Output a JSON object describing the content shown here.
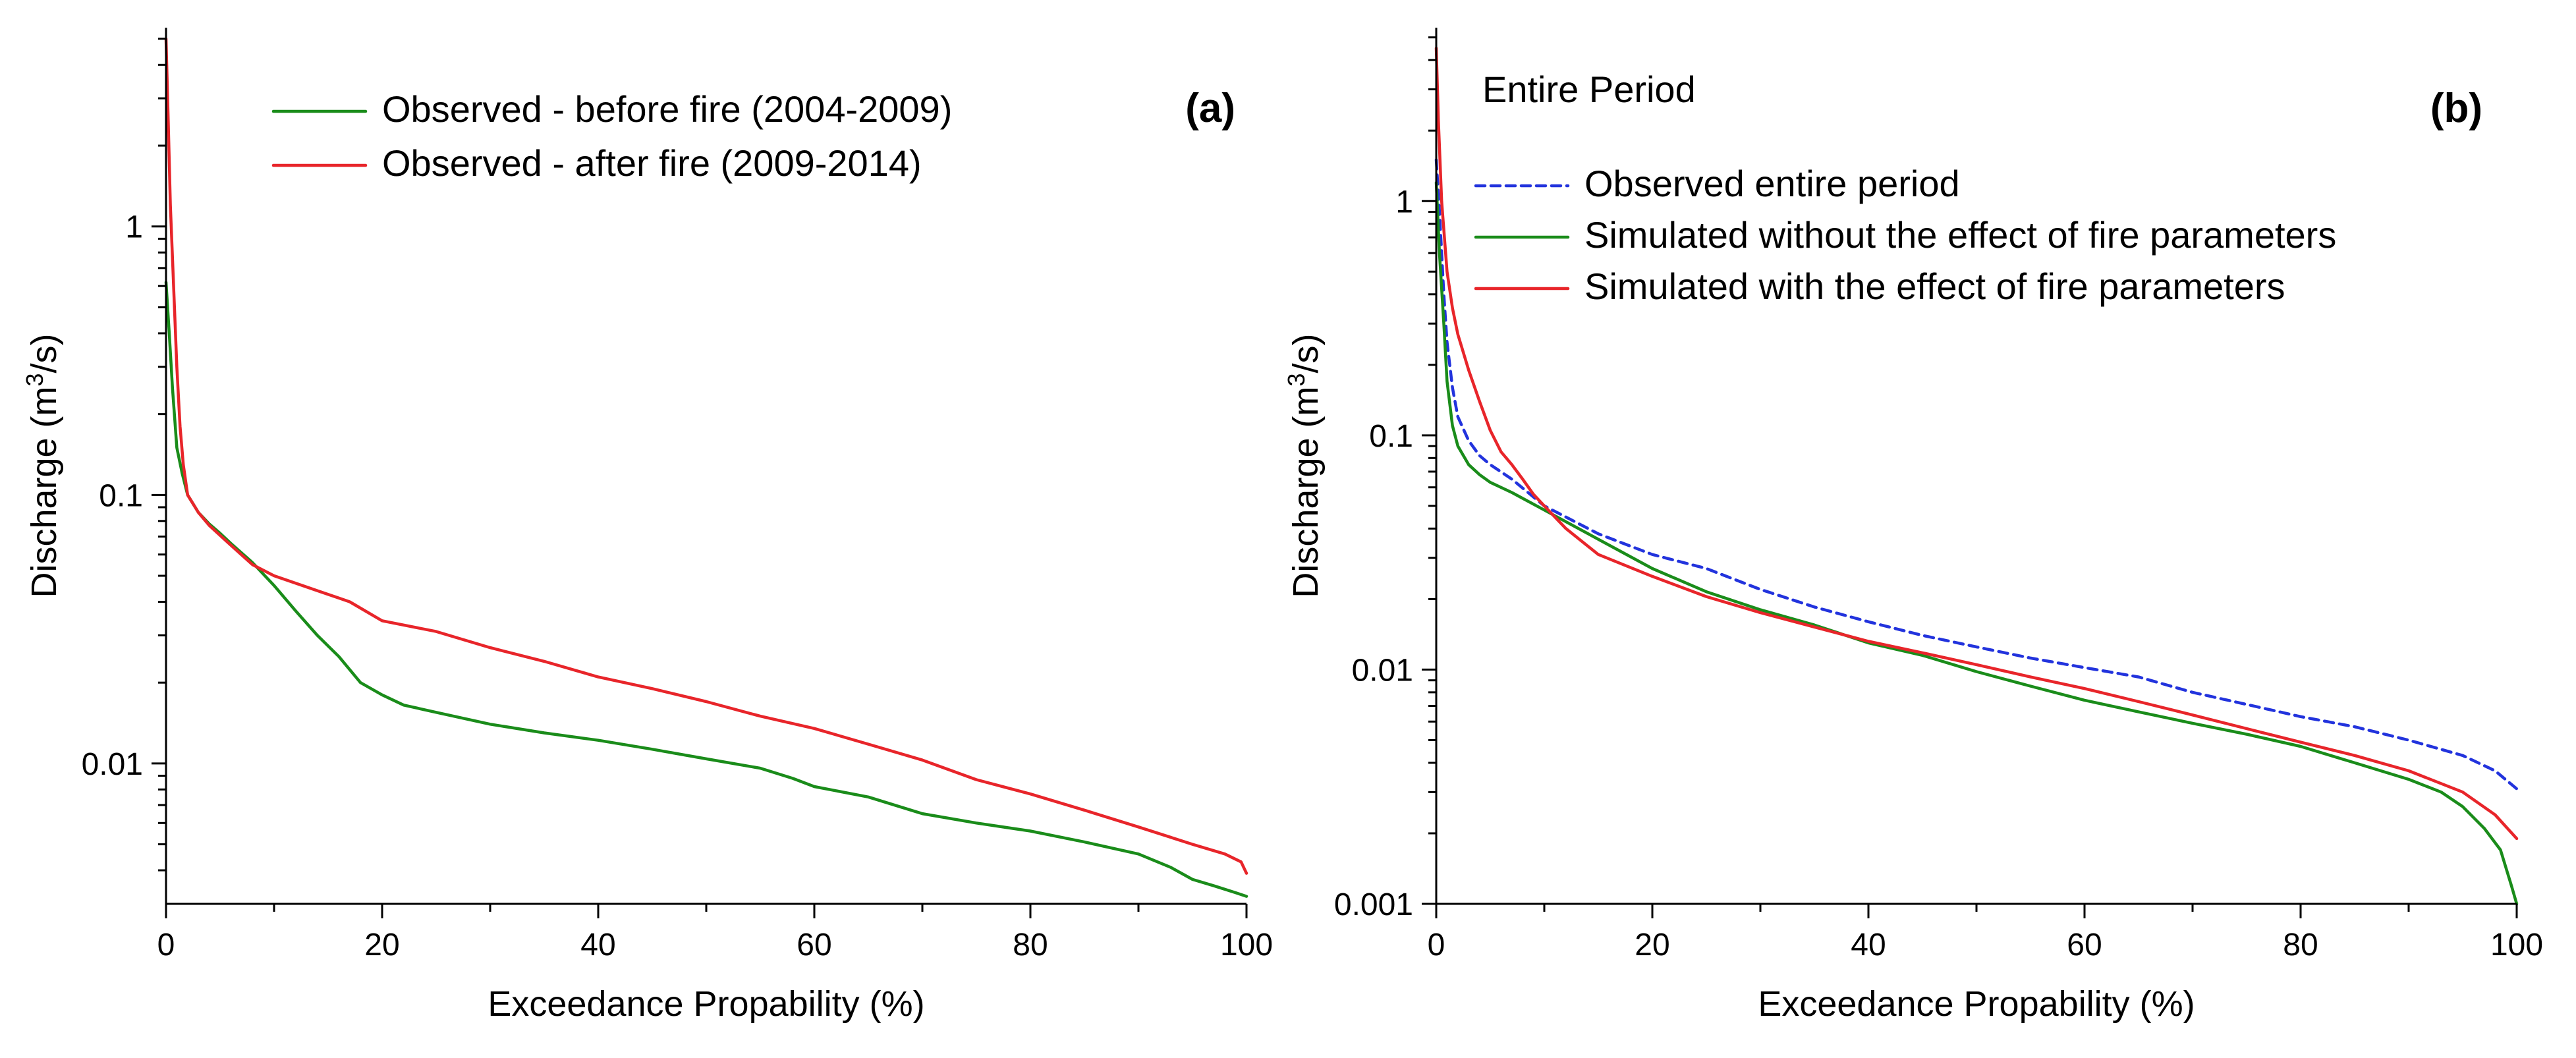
{
  "chart_data": [
    {
      "type": "line",
      "panel_label": "(a)",
      "xlabel": "Exceedance Propability (%)",
      "ylabel": "Discharge (m³/s)",
      "ylabel_parts": {
        "before": "Discharge (m",
        "sup": "3",
        "after": "/s)"
      },
      "xlim": [
        0,
        100
      ],
      "ylim": [
        0.003,
        5.5
      ],
      "yscale": "log",
      "xticks": [
        0,
        20,
        40,
        60,
        80,
        100
      ],
      "xtick_labels": [
        "0",
        "20",
        "40",
        "60",
        "80",
        "100"
      ],
      "yticks": [
        0.01,
        0.1,
        1
      ],
      "ytick_labels": [
        "0.01",
        "0.1",
        "1"
      ],
      "legend_position": "top-center",
      "series": [
        {
          "name": "Observed - before fire (2004-2009)",
          "color": "#1a8c1a",
          "dash": "solid",
          "x": [
            0,
            0.3,
            0.6,
            1,
            1.5,
            2,
            3,
            4,
            5,
            6,
            8,
            10,
            12,
            14,
            16,
            18,
            20,
            22,
            25,
            30,
            35,
            40,
            45,
            50,
            55,
            58,
            60,
            65,
            70,
            75,
            80,
            85,
            90,
            93,
            95,
            97,
            99,
            100
          ],
          "y": [
            0.62,
            0.4,
            0.25,
            0.15,
            0.12,
            0.1,
            0.086,
            0.078,
            0.072,
            0.066,
            0.056,
            0.046,
            0.037,
            0.03,
            0.025,
            0.02,
            0.018,
            0.0165,
            0.0155,
            0.014,
            0.013,
            0.0122,
            0.0113,
            0.0104,
            0.0096,
            0.0088,
            0.0082,
            0.0075,
            0.0065,
            0.006,
            0.0056,
            0.0051,
            0.0046,
            0.0041,
            0.0037,
            0.0035,
            0.0033,
            0.0032
          ]
        },
        {
          "name": "Observed - after fire (2009-2014)",
          "color": "#e8252a",
          "dash": "solid",
          "x": [
            0,
            0.2,
            0.4,
            0.7,
            1,
            1.3,
            1.6,
            2,
            3,
            4,
            6,
            8,
            10,
            14,
            17,
            20,
            25,
            30,
            35,
            40,
            45,
            50,
            55,
            60,
            65,
            70,
            75,
            80,
            85,
            90,
            95,
            98,
            99.5,
            100
          ],
          "y": [
            5.0,
            2.5,
            1.2,
            0.6,
            0.3,
            0.18,
            0.13,
            0.1,
            0.086,
            0.077,
            0.065,
            0.055,
            0.05,
            0.044,
            0.04,
            0.034,
            0.031,
            0.027,
            0.024,
            0.021,
            0.019,
            0.017,
            0.015,
            0.0135,
            0.0118,
            0.0103,
            0.0087,
            0.0077,
            0.0067,
            0.0058,
            0.005,
            0.0046,
            0.0043,
            0.0039
          ]
        }
      ]
    },
    {
      "type": "line",
      "panel_label": "(b)",
      "period_label": "Entire Period",
      "xlabel": "Exceedance Propability (%)",
      "ylabel": "Discharge (m³/s)",
      "ylabel_parts": {
        "before": "Discharge (m",
        "sup": "3",
        "after": "/s)"
      },
      "xlim": [
        0,
        100
      ],
      "ylim": [
        0.001,
        5.5
      ],
      "yscale": "log",
      "xticks": [
        0,
        20,
        40,
        60,
        80,
        100
      ],
      "xtick_labels": [
        "0",
        "20",
        "40",
        "60",
        "80",
        "100"
      ],
      "yticks": [
        0.001,
        0.01,
        0.1,
        1
      ],
      "ytick_labels": [
        "0.001",
        "0.01",
        "0.1",
        "1"
      ],
      "legend_position": "top-center",
      "series": [
        {
          "name": "Observed entire period",
          "color": "#2233dd",
          "dash": "dashed",
          "x": [
            0,
            0.3,
            0.7,
            1,
            1.5,
            2,
            3,
            4,
            5,
            7,
            10,
            15,
            20,
            25,
            30,
            35,
            40,
            45,
            50,
            55,
            60,
            65,
            70,
            75,
            80,
            85,
            90,
            95,
            98,
            100
          ],
          "y": [
            1.5,
            0.9,
            0.4,
            0.25,
            0.16,
            0.12,
            0.095,
            0.082,
            0.075,
            0.065,
            0.05,
            0.038,
            0.031,
            0.027,
            0.022,
            0.0185,
            0.016,
            0.014,
            0.0125,
            0.0112,
            0.0102,
            0.0093,
            0.008,
            0.0071,
            0.0063,
            0.0057,
            0.005,
            0.0043,
            0.0037,
            0.0031
          ]
        },
        {
          "name": "Simulated without the effect of fire parameters",
          "color": "#1a8c1a",
          "dash": "solid",
          "x": [
            0,
            0.3,
            0.7,
            1,
            1.5,
            2,
            3,
            4,
            5,
            7,
            10,
            15,
            20,
            25,
            30,
            35,
            40,
            45,
            50,
            55,
            60,
            65,
            70,
            75,
            80,
            85,
            90,
            93,
            95,
            97,
            98.5,
            99.5,
            100
          ],
          "y": [
            1.2,
            0.6,
            0.3,
            0.17,
            0.11,
            0.09,
            0.075,
            0.068,
            0.063,
            0.057,
            0.048,
            0.036,
            0.027,
            0.0215,
            0.018,
            0.0155,
            0.013,
            0.0115,
            0.0098,
            0.0085,
            0.0074,
            0.0066,
            0.0059,
            0.0053,
            0.0047,
            0.004,
            0.0034,
            0.003,
            0.0026,
            0.0021,
            0.0017,
            0.0012,
            0.001
          ]
        },
        {
          "name": "Simulated with the effect of fire parameters",
          "color": "#e8252a",
          "dash": "solid",
          "x": [
            0,
            0.2,
            0.5,
            1,
            1.5,
            2,
            3,
            4,
            5,
            6,
            7,
            8,
            9,
            10,
            12,
            15,
            20,
            25,
            30,
            35,
            40,
            45,
            50,
            55,
            60,
            65,
            70,
            75,
            80,
            85,
            90,
            95,
            98,
            100
          ],
          "y": [
            4.5,
            2.2,
            1.0,
            0.5,
            0.35,
            0.27,
            0.19,
            0.14,
            0.105,
            0.085,
            0.075,
            0.065,
            0.056,
            0.05,
            0.04,
            0.031,
            0.025,
            0.0205,
            0.0175,
            0.0152,
            0.0132,
            0.0118,
            0.0105,
            0.0093,
            0.0083,
            0.0073,
            0.0064,
            0.0056,
            0.0049,
            0.0043,
            0.0037,
            0.003,
            0.0024,
            0.0019
          ]
        }
      ]
    }
  ]
}
